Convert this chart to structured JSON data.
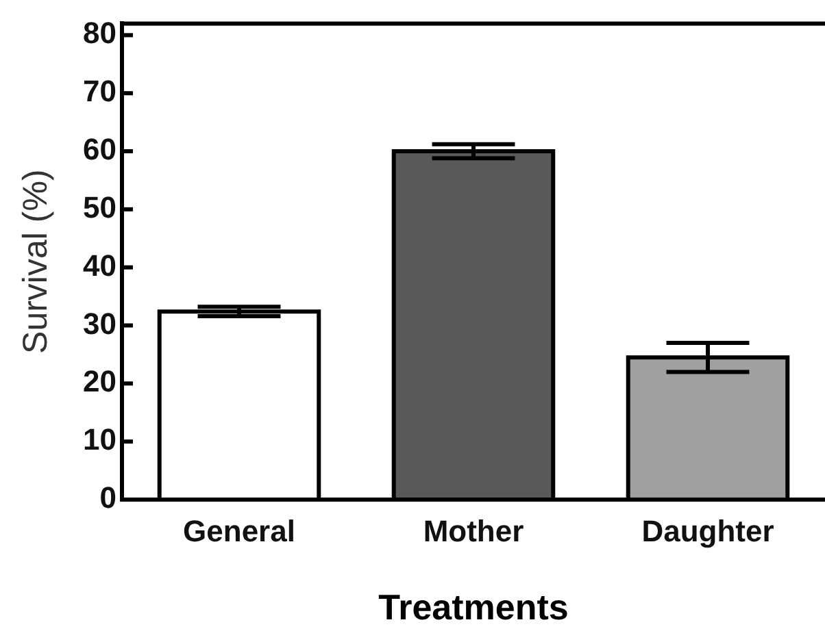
{
  "chart_data": {
    "type": "bar",
    "xlabel": "Treatments",
    "ylabel": "Survival (%)",
    "categories": [
      "General",
      "Mother",
      "Daughter"
    ],
    "values": [
      32.4,
      60,
      24.5
    ],
    "colors": [
      "#ffffff",
      "#595959",
      "#a0a0a0"
    ],
    "errors": [
      0.8,
      1.2,
      2.5
    ],
    "ylim": [
      0,
      82
    ],
    "yticks": [
      0,
      10,
      20,
      30,
      40,
      50,
      60,
      70,
      80
    ]
  }
}
